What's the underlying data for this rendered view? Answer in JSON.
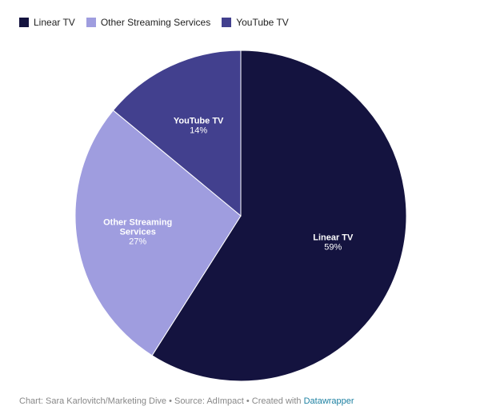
{
  "chart_data": {
    "type": "pie",
    "categories": [
      "Linear TV",
      "Other Streaming Services",
      "YouTube TV"
    ],
    "values": [
      59,
      27,
      14
    ],
    "labels": [
      {
        "lines": [
          "Linear TV"
        ],
        "value_text": "59%"
      },
      {
        "lines": [
          "Other Streaming",
          "Services"
        ],
        "value_text": "27%"
      },
      {
        "lines": [
          "YouTube TV"
        ],
        "value_text": "14%"
      }
    ],
    "colors": [
      "#14133f",
      "#9f9ddf",
      "#42408e"
    ],
    "start": "12 o'clock",
    "direction": "clockwise",
    "legend_position": "top-left"
  },
  "legend": {
    "items": [
      {
        "label": "Linear TV",
        "color": "#14133f"
      },
      {
        "label": "Other Streaming Services",
        "color": "#9f9ddf"
      },
      {
        "label": "YouTube TV",
        "color": "#42408e"
      }
    ]
  },
  "footer": {
    "prefix": "Chart: Sara Karlovitch/Marketing Dive • Source: AdImpact • Created with ",
    "link": "Datawrapper"
  }
}
